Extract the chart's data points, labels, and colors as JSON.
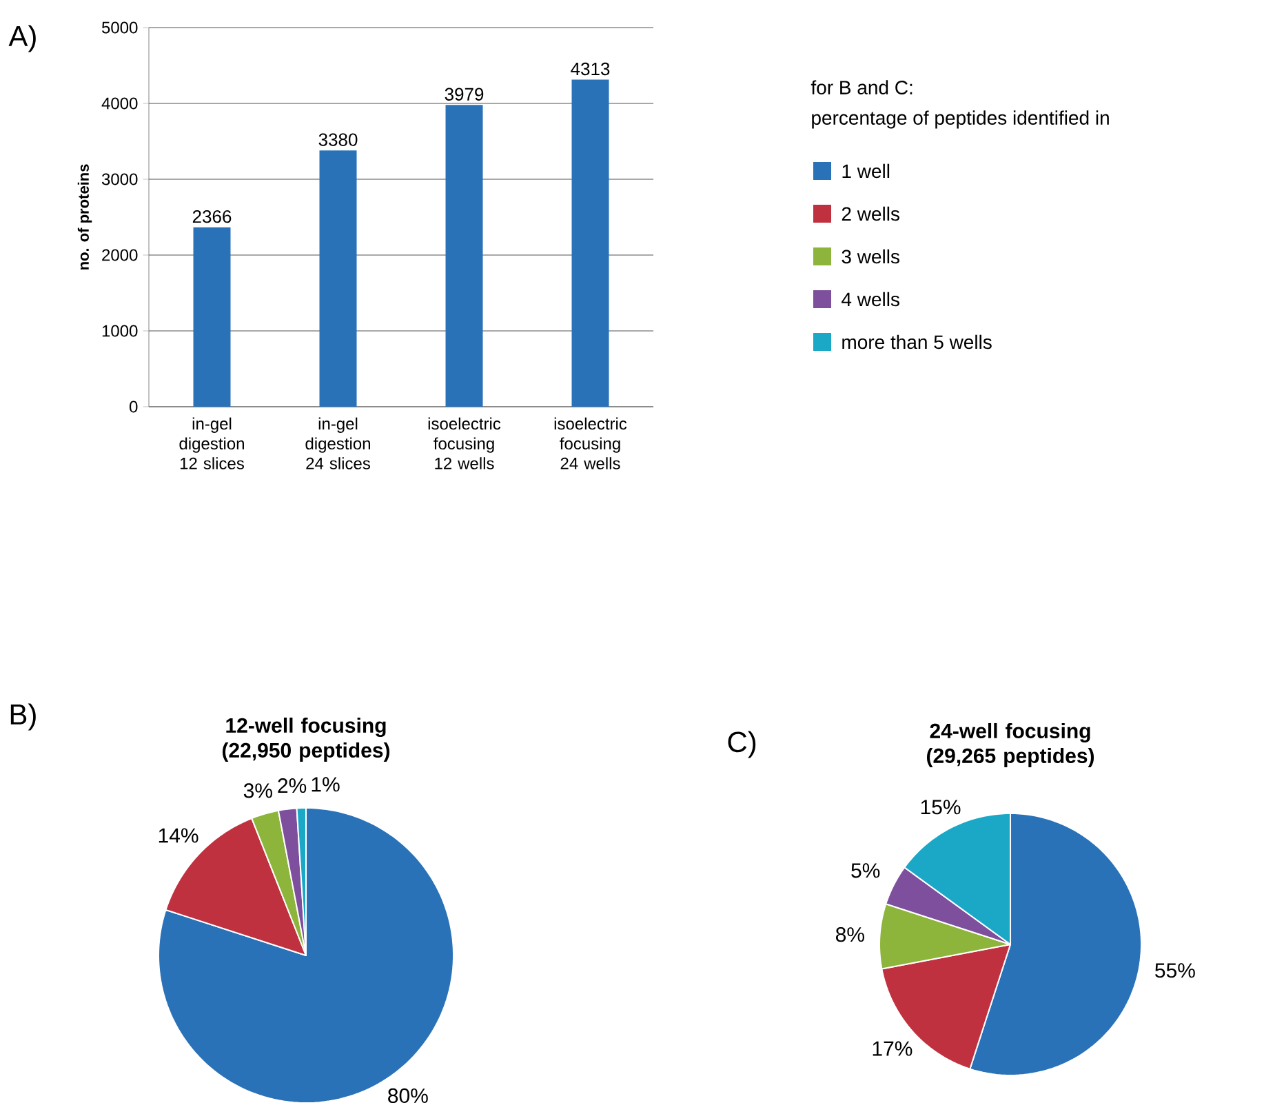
{
  "chart_data": [
    {
      "type": "bar",
      "ylabel": "no. of proteins",
      "annotations": [
        "A)"
      ],
      "categories": [
        "in-gel digestion 12 slices",
        "in-gel digestion 24 slices",
        "isoelectric focusing 12 wells",
        "isoelectric focusing 24 wells"
      ],
      "values": [
        2366,
        3380,
        3979,
        4313
      ],
      "color": "#2a72b8",
      "ylim": [
        0,
        5000
      ],
      "yticks": [
        0,
        1000,
        2000,
        3000,
        4000,
        5000
      ],
      "grid": "y",
      "data_labels": true
    },
    {
      "type": "pie",
      "title": "12-well focusing (22,950 peptides)",
      "annotations": [
        "B)"
      ],
      "values": [
        80,
        14,
        3,
        2,
        1
      ],
      "colors": [
        "#2a72b8",
        "#c0313f",
        "#8db53c",
        "#7d4f9c",
        "#1ba8c6"
      ],
      "value_labels": [
        "80%",
        "14%",
        "3%",
        "2%",
        "1%"
      ]
    },
    {
      "type": "pie",
      "title": "24-well focusing (29,265 peptides)",
      "annotations": [
        "C)",
        "for B and C:"
      ],
      "categories": [
        "1 well",
        "2 wells",
        "3 wells",
        "4 wells",
        "more than 5 wells"
      ],
      "values": [
        55,
        17,
        8,
        5,
        15
      ],
      "colors": [
        "#2a72b8",
        "#c0313f",
        "#8db53c",
        "#7d4f9c",
        "#1ba8c6"
      ],
      "value_labels": [
        "55%",
        "17%",
        "8%",
        "5%",
        "15%"
      ],
      "legend": "top",
      "legend_title": "percentage of peptides identified in"
    }
  ]
}
